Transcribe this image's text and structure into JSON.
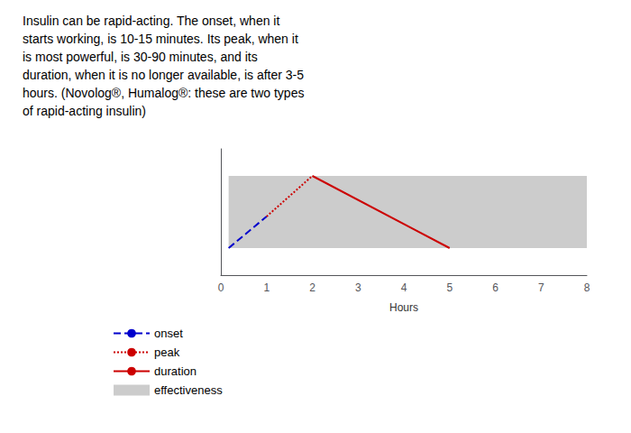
{
  "chart_data": {
    "type": "line",
    "title": "Insulin can be rapid-acting. The onset, when it\nstarts working, is 10-15 minutes. Its peak, when it\nis most powerful, is 30-90 minutes, and its\nduration, when it is no longer available, is after 3-5\nhours. (Novolog®, Humalog®: these are two types\nof rapid-acting insulin)",
    "xlabel": "Hours",
    "xlim": [
      0,
      8
    ],
    "xticks": [
      0,
      1,
      2,
      3,
      4,
      5,
      6,
      7,
      8
    ],
    "ylim": [
      -0.6,
      2.2
    ],
    "tick_labels": "x",
    "grid": false,
    "legend": "lower left",
    "series": [
      {
        "name": "onset",
        "type": "line",
        "color": "#0000cc",
        "line_style": "dashed",
        "x": [
          0.17,
          1.0
        ],
        "values": [
          0.0,
          0.7
        ]
      },
      {
        "name": "peak",
        "type": "line",
        "color": "#cc0000",
        "line_style": "dotted",
        "x": [
          1.0,
          2.0
        ],
        "values": [
          0.7,
          1.6
        ]
      },
      {
        "name": "duration",
        "type": "line",
        "color": "#cc0000",
        "line_style": "solid",
        "x": [
          2.0,
          5.0
        ],
        "values": [
          1.6,
          0.0
        ]
      },
      {
        "name": "effectiveness",
        "type": "area",
        "color": "#cccccc",
        "x": [
          0.17,
          8.0
        ],
        "values": [
          1.6,
          1.6
        ]
      }
    ]
  }
}
